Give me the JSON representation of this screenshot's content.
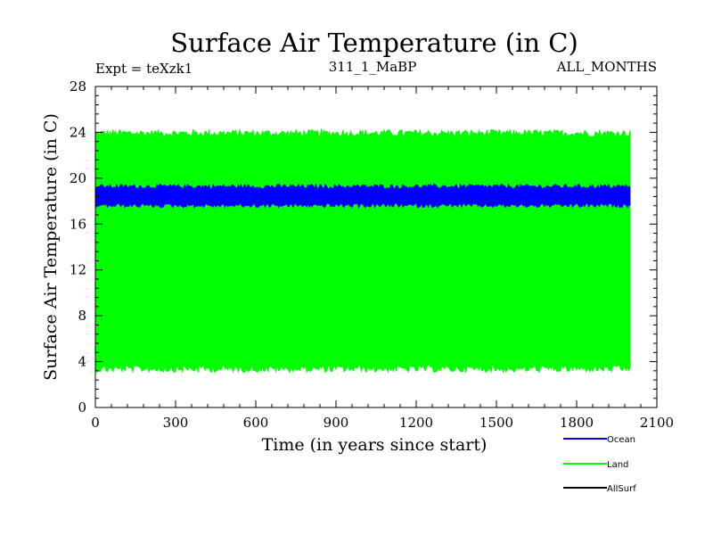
{
  "chart_data": {
    "type": "area",
    "title": "Surface Air Temperature (in C)",
    "subtitle_left": "Expt = teXzk1",
    "subtitle_center": "311_1_MaBP",
    "subtitle_right": "ALL_MONTHS",
    "xlabel": "Time (in years since start)",
    "ylabel": "Surface Air Temperature (in C)",
    "xlim": [
      0,
      2100
    ],
    "ylim": [
      0,
      28
    ],
    "xticks": [
      0,
      300,
      600,
      900,
      1200,
      1500,
      1800,
      2100
    ],
    "yticks": [
      0,
      4,
      8,
      12,
      16,
      20,
      24,
      28
    ],
    "x_extent": [
      0,
      2000
    ],
    "series": [
      {
        "name": "Land",
        "color": "#00ff00",
        "range_low": 3.5,
        "range_high": 23.8,
        "noise": 0.4
      },
      {
        "name": "Ocean",
        "color": "#0000ff",
        "range_low": 17.7,
        "range_high": 19.2,
        "noise": 0.25
      },
      {
        "name": "AllSurf",
        "color": "#000000",
        "range_low": null,
        "range_high": null,
        "noise": 0
      }
    ],
    "legend": [
      "Ocean",
      "Land",
      "AllSurf"
    ]
  }
}
